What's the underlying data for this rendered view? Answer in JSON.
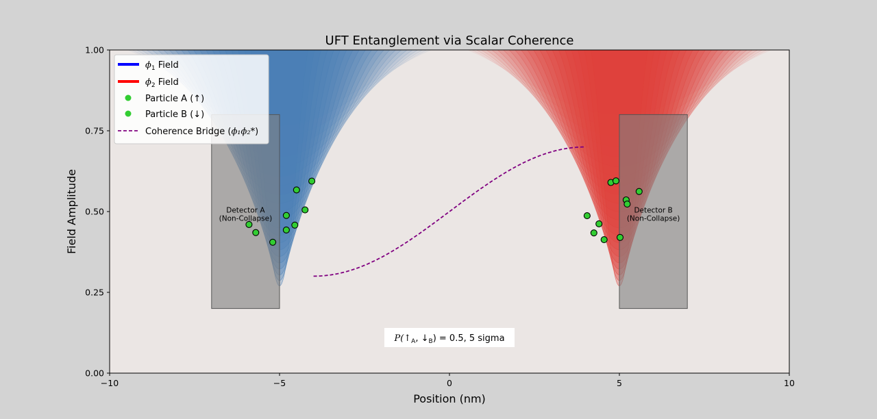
{
  "chart_data": {
    "type": "scatter",
    "title": "UFT Entanglement via Scalar Coherence",
    "xlabel": "Position (nm)",
    "ylabel": "Field Amplitude",
    "xlim": [
      -10,
      10
    ],
    "ylim": [
      0,
      1
    ],
    "x_ticks": [
      -10,
      -5,
      0,
      5,
      10
    ],
    "x_tick_labels": [
      "−10",
      "−5",
      "0",
      "5",
      "10"
    ],
    "y_ticks": [
      0,
      0.25,
      0.5,
      0.75,
      1.0
    ],
    "y_tick_labels": [
      "0.00",
      "0.25",
      "0.50",
      "0.75",
      "1.00"
    ],
    "grid": false,
    "legend_position": "top-left",
    "legend": [
      {
        "label_main": "ϕ",
        "label_sub": "1",
        "label_rest": " Field",
        "kind": "line",
        "color": "#0000ff"
      },
      {
        "label_main": "ϕ",
        "label_sub": "2",
        "label_rest": " Field",
        "kind": "line",
        "color": "#ff0000"
      },
      {
        "label_main": "Particle A (↑)",
        "label_sub": "",
        "label_rest": "",
        "kind": "dot",
        "color": "#32cd32"
      },
      {
        "label_main": "Particle B (↓)",
        "label_sub": "",
        "label_rest": "",
        "kind": "dot",
        "color": "#32cd32"
      },
      {
        "label_main": "Coherence Bridge (",
        "label_sub": "",
        "label_rest": ")",
        "label_math": "ϕ₁ϕ₂*",
        "kind": "dash",
        "color": "#800080"
      }
    ],
    "fields": [
      {
        "name": "phi1",
        "center": -5,
        "color": "#4a7fb5"
      },
      {
        "name": "phi2",
        "center": 5,
        "color": "#e0403a"
      }
    ],
    "detectors": [
      {
        "label_line1": "Detector A",
        "label_line2": "(Non-Collapse)",
        "x_range": [
          -7,
          -5
        ],
        "y_range": [
          0.2,
          0.8
        ],
        "label_at": [
          -6,
          0.49
        ]
      },
      {
        "label_line1": "Detector B",
        "label_line2": "(Non-Collapse)",
        "x_range": [
          5,
          7
        ],
        "y_range": [
          0.2,
          0.8
        ],
        "label_at": [
          6,
          0.49
        ]
      }
    ],
    "series": [
      {
        "name": "Particle A (↑)",
        "color": "#32cd32",
        "points": [
          [
            -5.9,
            0.46
          ],
          [
            -5.7,
            0.435
          ],
          [
            -5.2,
            0.405
          ],
          [
            -4.8,
            0.443
          ],
          [
            -4.55,
            0.458
          ],
          [
            -4.8,
            0.488
          ],
          [
            -4.25,
            0.505
          ],
          [
            -4.5,
            0.567
          ],
          [
            -4.05,
            0.594
          ]
        ]
      },
      {
        "name": "Particle B (↓)",
        "color": "#32cd32",
        "points": [
          [
            4.05,
            0.487
          ],
          [
            4.25,
            0.434
          ],
          [
            4.4,
            0.462
          ],
          [
            4.55,
            0.413
          ],
          [
            4.75,
            0.59
          ],
          [
            4.9,
            0.595
          ],
          [
            5.02,
            0.42
          ],
          [
            5.2,
            0.536
          ],
          [
            5.23,
            0.523
          ],
          [
            5.58,
            0.562
          ]
        ]
      }
    ],
    "bridge": {
      "x_from": -4,
      "x_to": 4,
      "y_from": 0.3,
      "y_to": 0.7,
      "color": "#800080"
    },
    "annotation": {
      "text_prefix": "P(↑",
      "sub_a": "A",
      "text_mid": ", ↓",
      "sub_b": "B",
      "text_suffix": ") = 0.5, 5 sigma",
      "at": [
        0,
        0.11
      ]
    }
  }
}
